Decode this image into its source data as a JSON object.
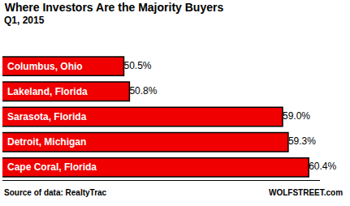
{
  "chart_data": {
    "type": "bar",
    "orientation": "horizontal",
    "title": "Where Investors Are the Majority Buyers",
    "subtitle": "Q1, 2015",
    "categories": [
      "Columbus, Ohio",
      "Lakeland, Florida",
      "Sarasota, Florida",
      "Detroit, Michigan",
      "Cape Coral, Florida"
    ],
    "values": [
      50.5,
      50.8,
      59.0,
      59.3,
      60.4
    ],
    "value_labels": [
      "50.5%",
      "50.8%",
      "59.0%",
      "59.3%",
      "60.4%"
    ],
    "data_labels": true,
    "color": "#f00000",
    "xlim": [
      44,
      61
    ],
    "tick_labels": false,
    "grid": false,
    "source": "Source of data: RealtyTrac",
    "credit": "WOLFSTREET.com"
  }
}
